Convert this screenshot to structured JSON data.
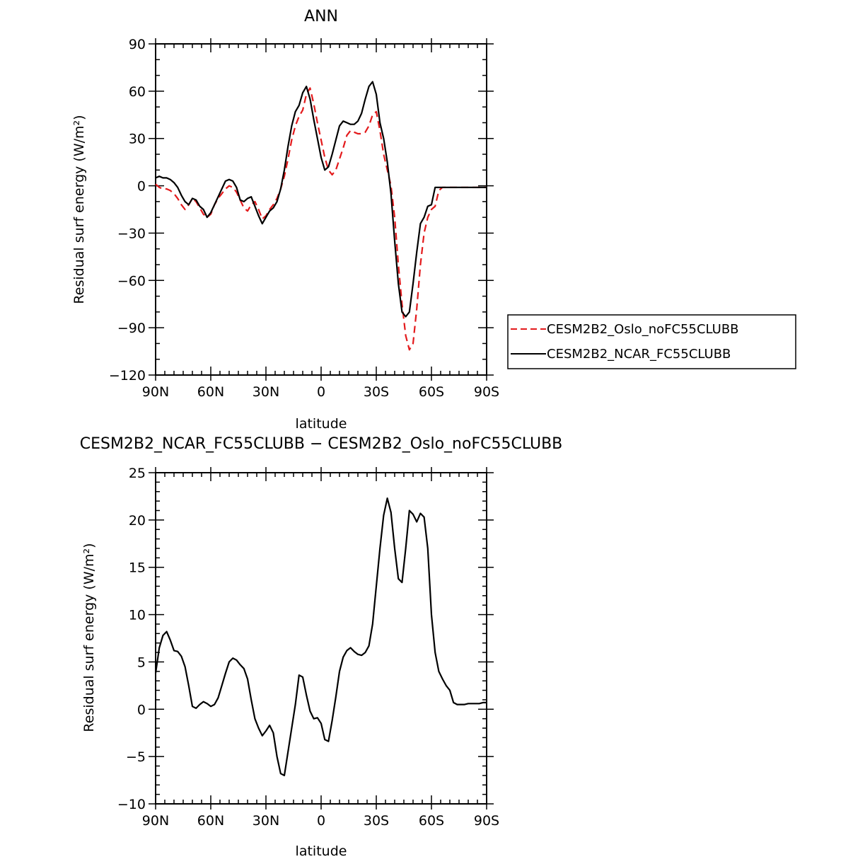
{
  "chart_data": [
    {
      "type": "line",
      "title": "ANN",
      "xlabel": "latitude",
      "ylabel": "Residual surf energy (W/m²)",
      "x_ticks": [
        90,
        60,
        30,
        0,
        -30,
        -60,
        -90
      ],
      "x_tick_labels": [
        "90N",
        "60N",
        "30N",
        "0",
        "30S",
        "60S",
        "90S"
      ],
      "xlim": [
        90,
        -90
      ],
      "y_ticks": [
        90,
        60,
        30,
        0,
        -30,
        -60,
        -90,
        -120
      ],
      "y_tick_labels": [
        "90",
        "60",
        "30",
        "0",
        "−30",
        "−60",
        "−90",
        "−120"
      ],
      "ylim": [
        -120,
        90
      ],
      "legend": "right",
      "x": [
        90,
        88,
        86,
        84,
        82,
        80,
        78,
        76,
        74,
        72,
        70,
        68,
        66,
        64,
        62,
        60,
        58,
        56,
        54,
        52,
        50,
        48,
        46,
        44,
        42,
        40,
        38,
        36,
        34,
        32,
        30,
        28,
        26,
        24,
        22,
        20,
        18,
        16,
        14,
        12,
        10,
        8,
        6,
        4,
        2,
        0,
        -2,
        -4,
        -6,
        -8,
        -10,
        -12,
        -14,
        -16,
        -18,
        -20,
        -22,
        -24,
        -26,
        -28,
        -30,
        -32,
        -34,
        -36,
        -38,
        -40,
        -42,
        -44,
        -46,
        -48,
        -50,
        -52,
        -54,
        -56,
        -58,
        -60,
        -62,
        -64,
        -66,
        -68,
        -70,
        -72,
        -74,
        -76,
        -78,
        -80,
        -82,
        -84,
        -86,
        -88,
        -90
      ],
      "series": [
        {
          "name": "CESM2B2_Oslo_noFC55CLUBB",
          "color": "#e31a1c",
          "dash": true,
          "values": [
            1,
            -1,
            -2,
            -2,
            -3,
            -5,
            -8,
            -12,
            -15,
            -12,
            -8,
            -10,
            -14,
            -18,
            -20,
            -18,
            -12,
            -8,
            -5,
            -2,
            0,
            -1,
            -4,
            -9,
            -14,
            -16,
            -12,
            -10,
            -15,
            -21,
            -19,
            -15,
            -12,
            -8,
            -2,
            6,
            17,
            29,
            38,
            44,
            48,
            58,
            62,
            52,
            40,
            29,
            18,
            10,
            7,
            10,
            17,
            24,
            32,
            35,
            34,
            33,
            33,
            34,
            38,
            45,
            47,
            35,
            20,
            10,
            0,
            -20,
            -50,
            -75,
            -95,
            -104,
            -100,
            -78,
            -50,
            -30,
            -20,
            -15,
            -13,
            -3,
            -1,
            -1,
            -1,
            -1,
            -1,
            -1,
            -1,
            -1,
            -1,
            -1,
            -1,
            -1,
            -1
          ]
        },
        {
          "name": "CESM2B2_NCAR_FC55CLUBB",
          "color": "#000000",
          "dash": false,
          "values": [
            5,
            6,
            5,
            5,
            4,
            2,
            -1,
            -6,
            -10,
            -12,
            -8,
            -9,
            -13,
            -15,
            -20,
            -17,
            -12,
            -7,
            -2,
            3,
            4,
            3,
            -1,
            -9,
            -10,
            -8,
            -7,
            -13,
            -19,
            -24,
            -20,
            -16,
            -14,
            -10,
            -2,
            10,
            25,
            38,
            47,
            51,
            59,
            63,
            55,
            42,
            30,
            18,
            10,
            12,
            20,
            29,
            38,
            41,
            40,
            39,
            39,
            41,
            46,
            55,
            63,
            66,
            58,
            40,
            30,
            15,
            -5,
            -35,
            -62,
            -80,
            -83,
            -80,
            -62,
            -42,
            -24,
            -20,
            -13,
            -12,
            -1,
            -1,
            -1,
            -1,
            -1,
            -1,
            -1,
            -1,
            -1,
            -1,
            -1,
            -1,
            -1,
            -1,
            -1
          ]
        }
      ]
    },
    {
      "type": "line",
      "title": "CESM2B2_NCAR_FC55CLUBB − CESM2B2_Oslo_noFC55CLUBB",
      "xlabel": "latitude",
      "ylabel": "Residual surf energy (W/m²)",
      "x_ticks": [
        90,
        60,
        30,
        0,
        -30,
        -60,
        -90
      ],
      "x_tick_labels": [
        "90N",
        "60N",
        "30N",
        "0",
        "30S",
        "60S",
        "90S"
      ],
      "xlim": [
        90,
        -90
      ],
      "y_ticks": [
        25,
        20,
        15,
        10,
        5,
        0,
        -5,
        -10
      ],
      "y_tick_labels": [
        "25",
        "20",
        "15",
        "10",
        "5",
        "0",
        "−5",
        "−10"
      ],
      "ylim": [
        -10,
        25
      ],
      "x": [
        90,
        88,
        86,
        84,
        82,
        80,
        78,
        76,
        74,
        72,
        70,
        68,
        66,
        64,
        62,
        60,
        58,
        56,
        54,
        52,
        50,
        48,
        46,
        44,
        42,
        40,
        38,
        36,
        34,
        32,
        30,
        28,
        26,
        24,
        22,
        20,
        18,
        16,
        14,
        12,
        10,
        8,
        6,
        4,
        2,
        0,
        -2,
        -4,
        -6,
        -8,
        -10,
        -12,
        -14,
        -16,
        -18,
        -20,
        -22,
        -24,
        -26,
        -28,
        -30,
        -32,
        -34,
        -36,
        -38,
        -40,
        -42,
        -44,
        -46,
        -48,
        -50,
        -52,
        -54,
        -56,
        -58,
        -60,
        -62,
        -64,
        -66,
        -68,
        -70,
        -72,
        -74,
        -76,
        -78,
        -80,
        -82,
        -84,
        -86,
        -88,
        -90
      ],
      "series": [
        {
          "color": "#000000",
          "dash": false,
          "values": [
            3.8,
            6.5,
            7.8,
            8.2,
            7.3,
            6.2,
            6.1,
            5.6,
            4.5,
            2.5,
            0.3,
            0.1,
            0.5,
            0.8,
            0.6,
            0.3,
            0.5,
            1.2,
            2.5,
            3.8,
            5.0,
            5.4,
            5.2,
            4.7,
            4.3,
            3.2,
            1.0,
            -1.0,
            -2.0,
            -2.8,
            -2.3,
            -1.7,
            -2.5,
            -5.0,
            -6.8,
            -7.0,
            -4.5,
            -2.0,
            0.5,
            3.6,
            3.4,
            1.5,
            -0.2,
            -1.0,
            -0.9,
            -1.5,
            -3.2,
            -3.4,
            -1.2,
            1.3,
            4.0,
            5.5,
            6.2,
            6.5,
            6.1,
            5.8,
            5.7,
            6.0,
            6.7,
            9.0,
            13.0,
            17.0,
            20.5,
            22.3,
            20.8,
            17.0,
            13.8,
            13.4,
            17.0,
            21.0,
            20.6,
            19.8,
            20.7,
            20.3,
            17.0,
            10.0,
            6.0,
            4.0,
            3.2,
            2.5,
            2.0,
            0.7,
            0.5,
            0.5,
            0.5,
            0.6,
            0.6,
            0.6,
            0.6,
            0.7,
            0.7
          ]
        }
      ]
    }
  ]
}
